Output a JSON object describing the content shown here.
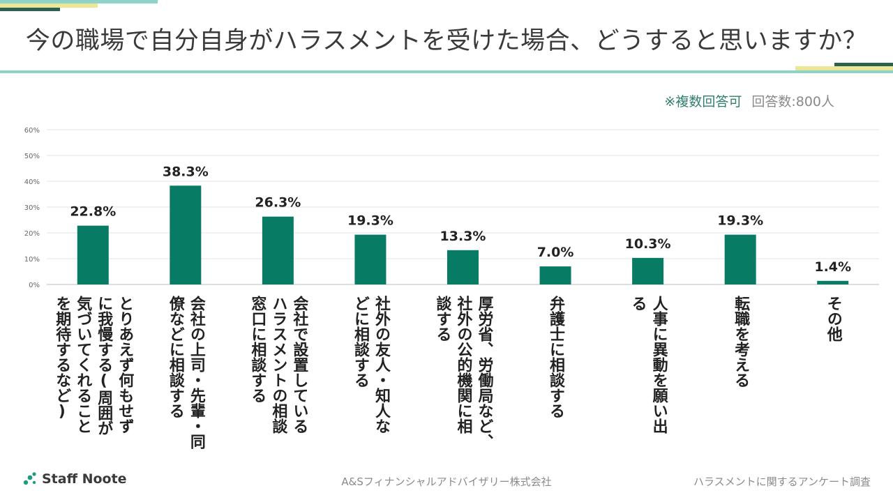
{
  "header": {
    "title": "今の職場で自分自身がハラスメントを受けた場合、どうすると思いますか？",
    "note_multi": "※複数回答可",
    "note_count": "回答数:800人"
  },
  "colors": {
    "bar": "#087B65",
    "accent_teal": "#8ED3C8",
    "accent_yellow": "#ECE796",
    "accent_dark": "#2C6052",
    "grid": "#E3E3E3"
  },
  "chart_data": {
    "type": "bar",
    "title": "今の職場で自分自身がハラスメントを受けた場合、どうすると思いますか？",
    "categories": [
      "とりあえず何もせずに我慢する(周囲が気づいてくれることを期待するなど)",
      "会社の上司・先輩・同僚などに相談する",
      "会社で設置しているハラスメントの相談窓口に相談する",
      "社外の友人・知人などに相談する",
      "厚労省、労働局など、社外の公的機関に相談する",
      "弁護士に相談する",
      "人事に異動を願い出る",
      "転職を考える",
      "その他"
    ],
    "category_lines": [
      [
        "とりあえず何もせず",
        "に我慢する(周囲が",
        "気づいてくれること",
        "を期待するなど)"
      ],
      [
        "会社の上司・先輩・同",
        "僚などに相談する"
      ],
      [
        "会社で設置している",
        "ハラスメントの相談",
        "窓口に相談する"
      ],
      [
        "社外の友人・知人な",
        "どに相談する"
      ],
      [
        "厚労省、労働局など、",
        "社外の公的機関に相",
        "談する"
      ],
      [
        "弁護士に相談する"
      ],
      [
        "人事に異動を願い出",
        "る"
      ],
      [
        "転職を考える"
      ],
      [
        "その他"
      ]
    ],
    "values": [
      22.8,
      38.3,
      26.3,
      19.3,
      13.3,
      7.0,
      10.3,
      19.3,
      1.4
    ],
    "value_labels": [
      "22.8%",
      "38.3%",
      "26.3%",
      "19.3%",
      "13.3%",
      "7.0%",
      "10.3%",
      "19.3%",
      "1.4%"
    ],
    "yticks": [
      "0%",
      "10%",
      "20%",
      "30%",
      "40%",
      "50%",
      "60%"
    ],
    "ylim": [
      0,
      60
    ],
    "xlabel": "",
    "ylabel": ""
  },
  "footer": {
    "logo_text": "Staff Noote",
    "company": "A&Sフィナンシャルアドバイザリー株式会社",
    "survey": "ハラスメントに関するアンケート調査"
  }
}
